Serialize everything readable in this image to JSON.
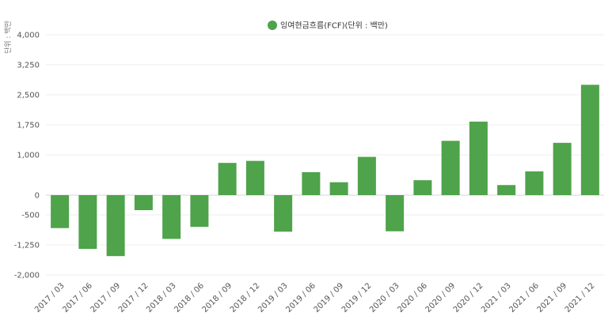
{
  "chart_data": {
    "type": "bar",
    "legend": {
      "label": "잉여현금흐름(FCF)(단위 : 백만)",
      "position": "top-center"
    },
    "y_unit_label": "단위 : 백만",
    "ylim": [
      -2000,
      4000
    ],
    "y_ticks": [
      {
        "value": 4000,
        "label": "4,000"
      },
      {
        "value": 3250,
        "label": "3,250"
      },
      {
        "value": 2500,
        "label": "2,500"
      },
      {
        "value": 1750,
        "label": "1,750"
      },
      {
        "value": 1000,
        "label": "1,000"
      },
      {
        "value": 0,
        "label": "0"
      },
      {
        "value": -500,
        "label": "-500"
      },
      {
        "value": -1250,
        "label": "-1,250"
      },
      {
        "value": -2000,
        "label": "-2,000"
      }
    ],
    "grid": true,
    "categories": [
      "2017 / 03",
      "2017 / 06",
      "2017 / 09",
      "2017 / 12",
      "2018 / 03",
      "2018 / 06",
      "2018 / 09",
      "2018 / 12",
      "2019 / 03",
      "2019 / 06",
      "2019 / 09",
      "2019 / 12",
      "2020 / 03",
      "2020 / 06",
      "2020 / 09",
      "2020 / 12",
      "2021 / 03",
      "2021 / 06",
      "2021 / 09",
      "2021 / 12"
    ],
    "series": [
      {
        "name": "잉여현금흐름(FCF)(단위 : 백만)",
        "color": "#4fa34a",
        "values": [
          -830,
          -1350,
          -1530,
          -380,
          -1100,
          -800,
          800,
          850,
          -920,
          570,
          320,
          950,
          -910,
          370,
          1350,
          1830,
          250,
          590,
          1300,
          2750
        ]
      }
    ]
  }
}
